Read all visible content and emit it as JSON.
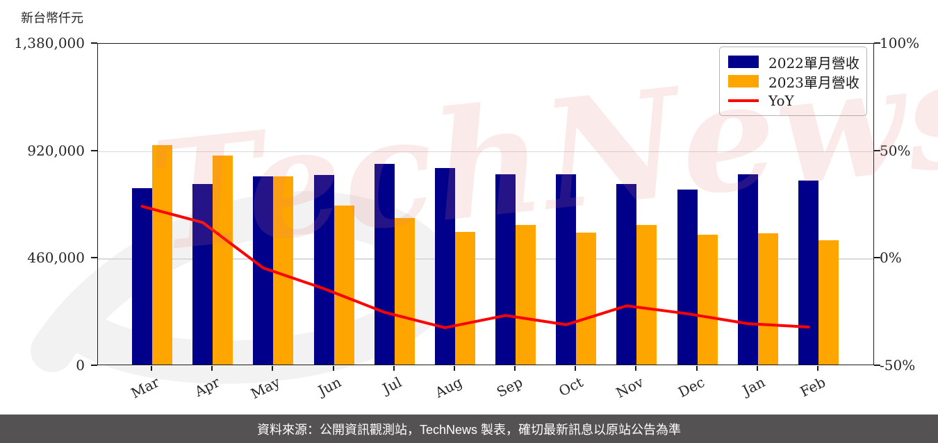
{
  "unit_label": "新台幣仟元",
  "watermark": {
    "text": "TechNews"
  },
  "footer": {
    "text": "資料來源：公開資訊觀測站，TechNews 製表，確切最新訊息以原站公告為準"
  },
  "colors": {
    "bar_2022": "#00008B",
    "bar_2023": "#FFA500",
    "yoy_line": "#FF0000",
    "gridline": "#d9d9d9",
    "axis": "#1a1a1a",
    "footer_bg": "#545252",
    "footer_text": "#ffffff",
    "watermark_pink": "rgba(226,122,122,0.16)",
    "watermark_gray": "rgba(70,70,70,0.07)"
  },
  "legend": [
    {
      "label": "2022單月營收",
      "type": "box",
      "color": "#00008B"
    },
    {
      "label": "2023單月營收",
      "type": "box",
      "color": "#FFA500"
    },
    {
      "label": "YoY",
      "type": "line",
      "color": "#FF0000"
    }
  ],
  "chart_data": {
    "type": "bar",
    "title": "",
    "xlabel": "",
    "ylabel_left": "新台幣仟元",
    "categories": [
      "Mar",
      "Apr",
      "May",
      "Jun",
      "Jul",
      "Aug",
      "Sep",
      "Oct",
      "Nov",
      "Dec",
      "Jan",
      "Feb"
    ],
    "series": [
      {
        "name": "2022單月營收",
        "type": "bar",
        "axis": "left",
        "color": "#00008B",
        "values": [
          755000,
          773000,
          806000,
          812000,
          859000,
          842000,
          816000,
          816000,
          773000,
          749000,
          815000,
          788000
        ]
      },
      {
        "name": "2023單月營收",
        "type": "bar",
        "axis": "left",
        "color": "#FFA500",
        "values": [
          940000,
          895000,
          807000,
          681000,
          628000,
          568000,
          598000,
          565000,
          598000,
          556000,
          562000,
          532000
        ]
      },
      {
        "name": "YoY",
        "type": "line",
        "axis": "right",
        "color": "#FF0000",
        "values": [
          24.3,
          16.8,
          -4.4,
          -14.0,
          -25.0,
          -32.2,
          -26.5,
          -30.8,
          -22.0,
          -25.7,
          -30.3,
          -31.9
        ]
      }
    ],
    "left_axis": {
      "tick_labels": [
        "1,380,000",
        "920,000",
        "460,000",
        "0"
      ],
      "tick_values": [
        1380000,
        920000,
        460000,
        0
      ],
      "min": 0,
      "max": 1380000
    },
    "right_axis": {
      "tick_labels": [
        "100%",
        "50%",
        "0%",
        "-50%"
      ],
      "tick_values": [
        100,
        50,
        0,
        -50
      ],
      "min": -50,
      "max": 100
    },
    "grid": "horizontal",
    "legend_position": "upper right"
  }
}
